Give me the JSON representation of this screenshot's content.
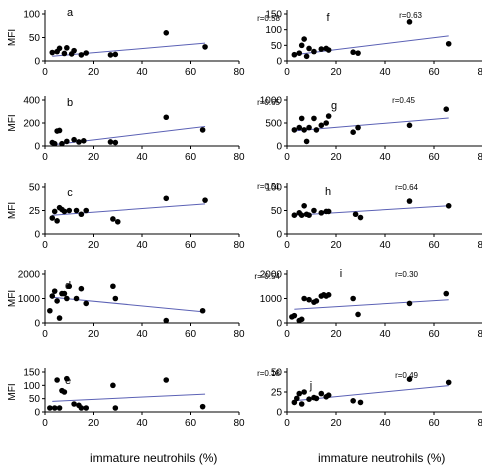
{
  "figure": {
    "xlabel_left": "immature neutrohils (%)",
    "xlabel_right": "immature neutrohils (%)"
  },
  "chart_data": [
    {
      "type": "scatter",
      "panel": "a",
      "ylabel": "MFI",
      "r_label": "r=0.58",
      "xlim": [
        0,
        80
      ],
      "ylim": [
        0,
        100
      ],
      "x_ticks": [
        0,
        20,
        40,
        60,
        80
      ],
      "y_ticks": [
        0,
        50,
        100
      ],
      "points": [
        [
          3,
          18
        ],
        [
          5,
          20
        ],
        [
          6,
          27
        ],
        [
          8,
          16
        ],
        [
          9,
          28
        ],
        [
          11,
          15
        ],
        [
          12,
          22
        ],
        [
          15,
          13
        ],
        [
          17,
          17
        ],
        [
          27,
          13
        ],
        [
          29,
          14
        ],
        [
          50,
          60
        ],
        [
          66,
          30
        ]
      ],
      "trendline": [
        [
          3,
          10
        ],
        [
          66,
          38
        ]
      ]
    },
    {
      "type": "scatter",
      "panel": "b",
      "ylabel": "MFI",
      "r_label": "r=0.65",
      "xlim": [
        0,
        80
      ],
      "ylim": [
        0,
        400
      ],
      "x_ticks": [
        0,
        20,
        40,
        60,
        80
      ],
      "y_ticks": [
        0,
        200,
        400
      ],
      "points": [
        [
          3,
          30
        ],
        [
          4,
          20
        ],
        [
          5,
          130
        ],
        [
          6,
          135
        ],
        [
          7,
          20
        ],
        [
          9,
          40
        ],
        [
          12,
          55
        ],
        [
          14,
          35
        ],
        [
          16,
          45
        ],
        [
          27,
          35
        ],
        [
          29,
          30
        ],
        [
          50,
          250
        ],
        [
          65,
          140
        ]
      ],
      "trendline": [
        [
          3,
          10
        ],
        [
          66,
          170
        ]
      ]
    },
    {
      "type": "scatter",
      "panel": "c",
      "ylabel": "MFI",
      "r_label": "r=0.51",
      "xlim": [
        0,
        80
      ],
      "ylim": [
        0,
        50
      ],
      "x_ticks": [
        0,
        20,
        40,
        60,
        80
      ],
      "y_ticks": [
        0,
        25,
        50
      ],
      "points": [
        [
          3,
          17
        ],
        [
          4,
          24
        ],
        [
          5,
          14
        ],
        [
          6,
          28
        ],
        [
          7,
          26
        ],
        [
          8,
          24
        ],
        [
          10,
          25
        ],
        [
          13,
          25
        ],
        [
          15,
          21
        ],
        [
          17,
          25
        ],
        [
          28,
          16
        ],
        [
          30,
          13
        ],
        [
          50,
          38
        ],
        [
          66,
          36
        ]
      ],
      "trendline": [
        [
          3,
          20
        ],
        [
          66,
          32
        ]
      ]
    },
    {
      "type": "scatter",
      "panel": "d",
      "ylabel": "MFI",
      "r_label": "r=-0.54",
      "xlim": [
        0,
        80
      ],
      "ylim": [
        0,
        2000
      ],
      "x_ticks": [
        0,
        20,
        40,
        60,
        80
      ],
      "y_ticks": [
        0,
        1000,
        2000
      ],
      "points": [
        [
          2,
          500
        ],
        [
          3,
          1100
        ],
        [
          4,
          1300
        ],
        [
          5,
          900
        ],
        [
          6,
          200
        ],
        [
          7,
          1200
        ],
        [
          8,
          1200
        ],
        [
          9,
          1000
        ],
        [
          10,
          1500
        ],
        [
          13,
          1000
        ],
        [
          15,
          1400
        ],
        [
          17,
          800
        ],
        [
          28,
          1500
        ],
        [
          29,
          1000
        ],
        [
          50,
          100
        ],
        [
          65,
          500
        ]
      ],
      "trendline": [
        [
          3,
          1050
        ],
        [
          66,
          450
        ]
      ]
    },
    {
      "type": "scatter",
      "panel": "e",
      "ylabel": "MFI",
      "r_label": "r=0.18",
      "xlim": [
        0,
        80
      ],
      "ylim": [
        0,
        150
      ],
      "x_ticks": [
        0,
        20,
        40,
        60,
        80
      ],
      "y_ticks": [
        0,
        50,
        100,
        150
      ],
      "points": [
        [
          2,
          15
        ],
        [
          4,
          15
        ],
        [
          5,
          120
        ],
        [
          6,
          15
        ],
        [
          7,
          80
        ],
        [
          8,
          75
        ],
        [
          9,
          125
        ],
        [
          12,
          30
        ],
        [
          14,
          25
        ],
        [
          15,
          15
        ],
        [
          17,
          15
        ],
        [
          28,
          100
        ],
        [
          29,
          15
        ],
        [
          50,
          120
        ],
        [
          65,
          20
        ]
      ],
      "trendline": [
        [
          3,
          40
        ],
        [
          66,
          67
        ]
      ]
    },
    {
      "type": "scatter",
      "panel": "f",
      "ylabel": "",
      "r_label": "r=0.63",
      "xlim": [
        0,
        80
      ],
      "ylim": [
        0,
        150
      ],
      "x_ticks": [
        0,
        20,
        40,
        60,
        80
      ],
      "y_ticks": [
        0,
        50,
        100,
        150
      ],
      "points": [
        [
          3,
          20
        ],
        [
          5,
          25
        ],
        [
          6,
          50
        ],
        [
          7,
          70
        ],
        [
          8,
          15
        ],
        [
          9,
          40
        ],
        [
          11,
          30
        ],
        [
          14,
          38
        ],
        [
          16,
          40
        ],
        [
          17,
          35
        ],
        [
          27,
          28
        ],
        [
          29,
          25
        ],
        [
          50,
          125
        ],
        [
          66,
          55
        ]
      ],
      "trendline": [
        [
          3,
          20
        ],
        [
          66,
          80
        ]
      ]
    },
    {
      "type": "scatter",
      "panel": "g",
      "ylabel": "",
      "r_label": "r=0.45",
      "xlim": [
        0,
        80
      ],
      "ylim": [
        0,
        1000
      ],
      "x_ticks": [
        0,
        20,
        40,
        60,
        80
      ],
      "y_ticks": [
        0,
        500,
        1000
      ],
      "points": [
        [
          3,
          350
        ],
        [
          5,
          400
        ],
        [
          6,
          600
        ],
        [
          7,
          350
        ],
        [
          8,
          100
        ],
        [
          9,
          400
        ],
        [
          11,
          600
        ],
        [
          12,
          350
        ],
        [
          14,
          450
        ],
        [
          16,
          500
        ],
        [
          17,
          650
        ],
        [
          27,
          300
        ],
        [
          29,
          400
        ],
        [
          50,
          450
        ],
        [
          65,
          800
        ]
      ],
      "trendline": [
        [
          3,
          330
        ],
        [
          66,
          610
        ]
      ]
    },
    {
      "type": "scatter",
      "panel": "h",
      "ylabel": "",
      "r_label": "r=0.64",
      "xlim": [
        0,
        80
      ],
      "ylim": [
        0,
        100
      ],
      "x_ticks": [
        0,
        20,
        40,
        60,
        80
      ],
      "y_ticks": [
        0,
        50,
        100
      ],
      "points": [
        [
          3,
          40
        ],
        [
          5,
          45
        ],
        [
          6,
          40
        ],
        [
          7,
          60
        ],
        [
          8,
          42
        ],
        [
          9,
          40
        ],
        [
          11,
          50
        ],
        [
          14,
          45
        ],
        [
          16,
          48
        ],
        [
          17,
          48
        ],
        [
          28,
          42
        ],
        [
          30,
          35
        ],
        [
          50,
          70
        ],
        [
          66,
          60
        ]
      ],
      "trendline": [
        [
          3,
          40
        ],
        [
          66,
          60
        ]
      ]
    },
    {
      "type": "scatter",
      "panel": "i",
      "ylabel": "",
      "r_label": "r=0.30",
      "xlim": [
        0,
        80
      ],
      "ylim": [
        0,
        2000
      ],
      "x_ticks": [
        0,
        20,
        40,
        60,
        80
      ],
      "y_ticks": [
        0,
        1000,
        2000
      ],
      "points": [
        [
          2,
          250
        ],
        [
          3,
          300
        ],
        [
          5,
          100
        ],
        [
          6,
          150
        ],
        [
          7,
          1000
        ],
        [
          9,
          950
        ],
        [
          11,
          850
        ],
        [
          12,
          900
        ],
        [
          14,
          1100
        ],
        [
          15,
          1150
        ],
        [
          16,
          1100
        ],
        [
          17,
          1150
        ],
        [
          27,
          1000
        ],
        [
          29,
          350
        ],
        [
          50,
          800
        ],
        [
          65,
          1200
        ]
      ],
      "trendline": [
        [
          3,
          560
        ],
        [
          66,
          950
        ]
      ]
    },
    {
      "type": "scatter",
      "panel": "j",
      "ylabel": "",
      "r_label": "r=0.49",
      "xlim": [
        0,
        80
      ],
      "ylim": [
        0,
        50
      ],
      "x_ticks": [
        0,
        20,
        40,
        60,
        80
      ],
      "y_ticks": [
        0,
        25,
        50
      ],
      "points": [
        [
          3,
          12
        ],
        [
          4,
          17
        ],
        [
          5,
          23
        ],
        [
          6,
          10
        ],
        [
          7,
          25
        ],
        [
          9,
          16
        ],
        [
          11,
          18
        ],
        [
          12,
          17
        ],
        [
          14,
          23
        ],
        [
          16,
          19
        ],
        [
          17,
          21
        ],
        [
          27,
          14
        ],
        [
          30,
          12
        ],
        [
          50,
          41
        ],
        [
          66,
          37
        ]
      ],
      "trendline": [
        [
          3,
          14
        ],
        [
          66,
          33
        ]
      ]
    }
  ]
}
